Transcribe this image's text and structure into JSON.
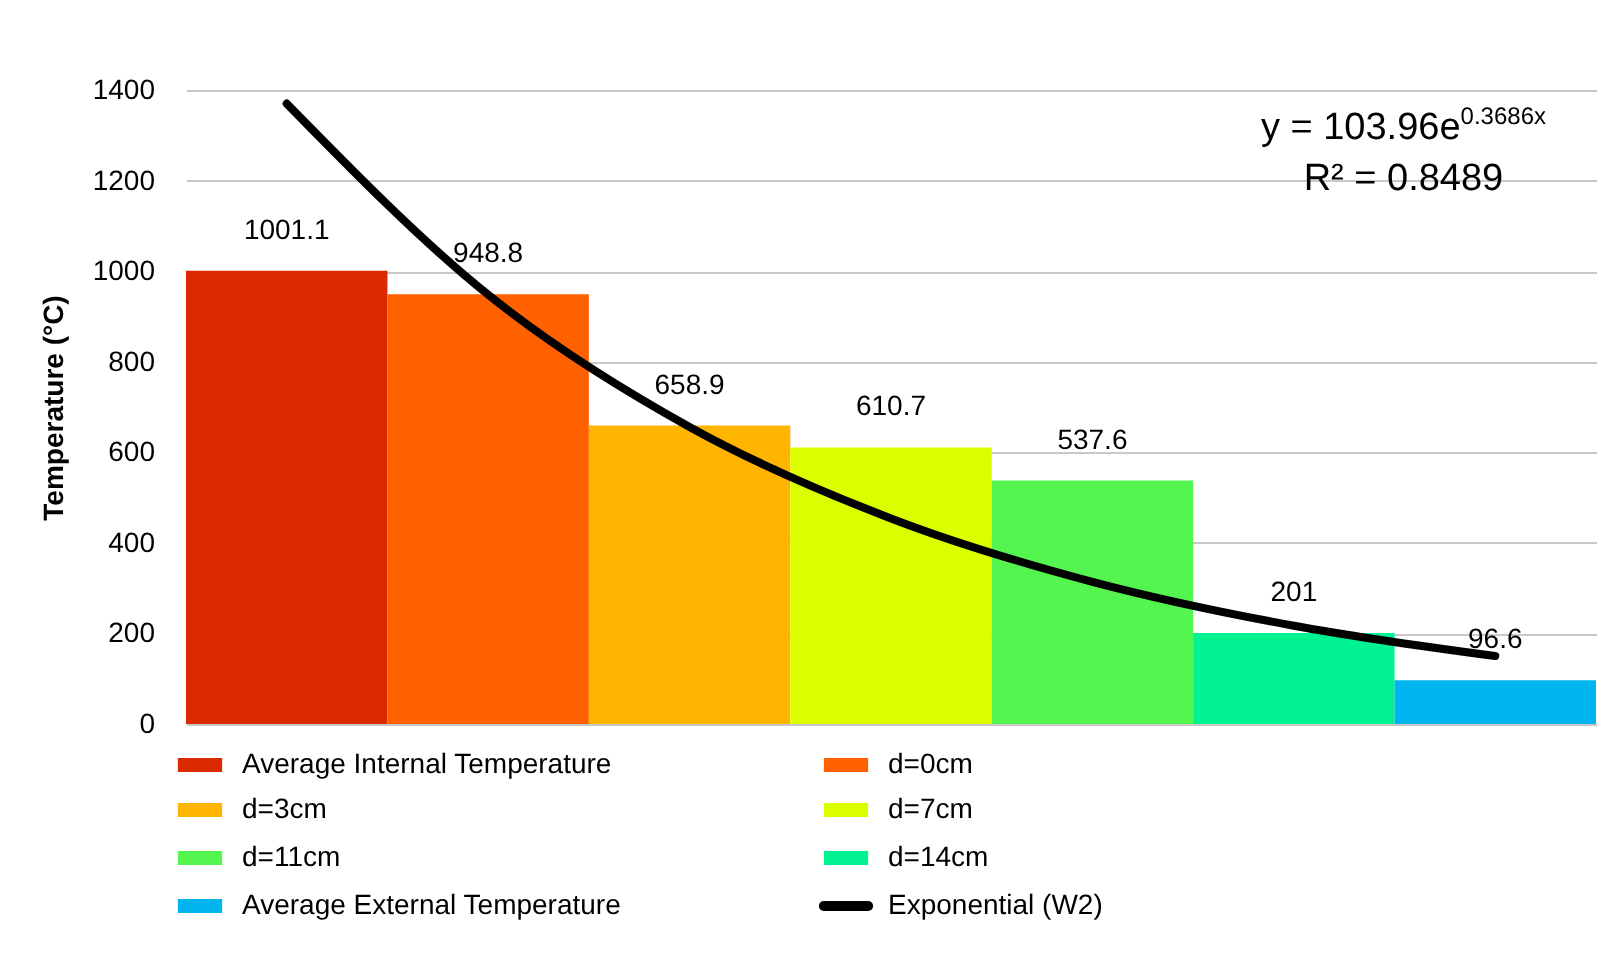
{
  "chart_data": {
    "type": "bar",
    "ylabel": "Temperature (°C)",
    "stacked": true,
    "categories": [
      null,
      null,
      null,
      null,
      null,
      null,
      null
    ],
    "series": [
      {
        "name": "Average Internal Temperature",
        "color": "#dc2a00",
        "values": [
          1001.1,
          null,
          null,
          null,
          null,
          null,
          null
        ],
        "value_labels": [
          "1001.1",
          null,
          null,
          null,
          null,
          null,
          null
        ]
      },
      {
        "name": "d=0cm",
        "color": "#ff6000",
        "values": [
          null,
          948.8,
          null,
          null,
          null,
          null,
          null
        ],
        "value_labels": [
          null,
          "948.8",
          null,
          null,
          null,
          null,
          null
        ]
      },
      {
        "name": "d=3cm",
        "color": "#ffb400",
        "values": [
          null,
          null,
          658.9,
          null,
          null,
          null,
          null
        ],
        "value_labels": [
          null,
          null,
          "658.9",
          null,
          null,
          null,
          null
        ]
      },
      {
        "name": "d=7cm",
        "color": "#dcff00",
        "values": [
          null,
          null,
          null,
          610.7,
          null,
          null,
          null
        ],
        "value_labels": [
          null,
          null,
          null,
          "610.7",
          null,
          null,
          null
        ]
      },
      {
        "name": "d=11cm",
        "color": "#55f550",
        "values": [
          null,
          null,
          null,
          null,
          537.6,
          null,
          null
        ],
        "value_labels": [
          null,
          null,
          null,
          null,
          "537.6",
          null,
          null
        ]
      },
      {
        "name": "d=14cm",
        "color": "#00f291",
        "values": [
          null,
          null,
          null,
          null,
          null,
          201,
          null
        ],
        "value_labels": [
          null,
          null,
          null,
          null,
          null,
          "201",
          null
        ]
      },
      {
        "name": "Average External Temperature",
        "color": "#00b4f0",
        "values": [
          null,
          null,
          null,
          null,
          null,
          null,
          96.6
        ],
        "value_labels": [
          null,
          null,
          null,
          null,
          null,
          null,
          "96.6"
        ]
      },
      {
        "name": "Exponential (W2)",
        "type": "line",
        "color": "#000000",
        "values": [
          1370,
          948,
          656,
          454,
          314,
          217,
          150
        ]
      }
    ],
    "ylim": [
      0,
      1400
    ],
    "yticks": [
      0,
      200,
      400,
      600,
      800,
      1000,
      1200,
      1400
    ],
    "tick_labels": "y",
    "grid": "y",
    "legend": "bottom",
    "annotations": [
      "y = 103.96e$^{0.3686x}$",
      "R² = 0.8489"
    ]
  }
}
